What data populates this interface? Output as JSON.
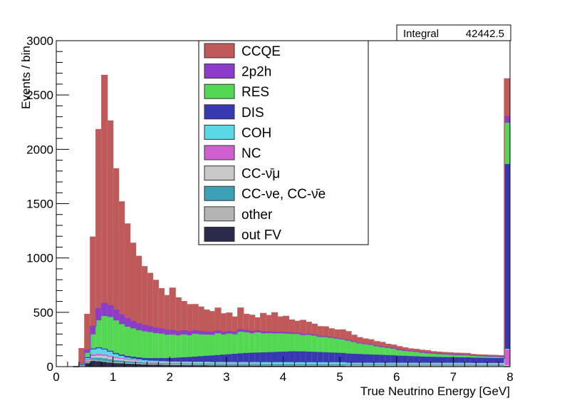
{
  "chart_data": {
    "type": "bar",
    "stacked": true,
    "histogram": true,
    "xlabel": "True Neutrino Energy [GeV]",
    "ylabel": "Events / bin",
    "xlim": [
      0,
      8
    ],
    "ylim": [
      0,
      3000
    ],
    "xticks": [
      "0",
      "1",
      "2",
      "3",
      "4",
      "5",
      "6",
      "7",
      "8"
    ],
    "yticks": [
      "0",
      "500",
      "1000",
      "1500",
      "2000",
      "2500",
      "3000"
    ],
    "grid": false,
    "legend_position": "top-center",
    "stats_box": {
      "label": "Integral",
      "value": "42442.5"
    },
    "bin_width": 0.1,
    "bin_low_edges": [
      0.3,
      0.4,
      0.5,
      0.6,
      0.7,
      0.8,
      0.9,
      1.0,
      1.1,
      1.2,
      1.3,
      1.4,
      1.5,
      1.6,
      1.7,
      1.8,
      1.9,
      2.0,
      2.1,
      2.2,
      2.3,
      2.4,
      2.5,
      2.6,
      2.7,
      2.8,
      2.9,
      3.0,
      3.1,
      3.2,
      3.3,
      3.4,
      3.5,
      3.6,
      3.7,
      3.8,
      3.9,
      4.0,
      4.1,
      4.2,
      4.3,
      4.4,
      4.5,
      4.6,
      4.7,
      4.8,
      4.9,
      5.0,
      5.1,
      5.2,
      5.3,
      5.4,
      5.5,
      5.6,
      5.7,
      5.8,
      5.9,
      6.0,
      6.1,
      6.2,
      6.3,
      6.4,
      6.5,
      6.6,
      6.7,
      6.8,
      6.9,
      7.0,
      7.1,
      7.2,
      7.3,
      7.4,
      7.5,
      7.6,
      7.7,
      7.8,
      7.9
    ],
    "series": [
      {
        "name": "out FV",
        "color": "#2a2a4a",
        "values": [
          0,
          5,
          30,
          50,
          45,
          40,
          35,
          30,
          28,
          26,
          24,
          22,
          20,
          18,
          17,
          16,
          15,
          14,
          14,
          13,
          13,
          12,
          12,
          12,
          11,
          11,
          11,
          10,
          10,
          10,
          10,
          10,
          10,
          9,
          9,
          9,
          9,
          9,
          9,
          8,
          8,
          8,
          8,
          8,
          8,
          8,
          8,
          8,
          7,
          7,
          7,
          7,
          7,
          7,
          7,
          7,
          7,
          6,
          6,
          6,
          6,
          6,
          6,
          6,
          6,
          6,
          6,
          6,
          6,
          6,
          5,
          5,
          5,
          5,
          5,
          5,
          0
        ]
      },
      {
        "name": "other",
        "color": "#b4b4b4",
        "values": [
          0,
          2,
          5,
          8,
          8,
          8,
          7,
          6,
          6,
          5,
          5,
          5,
          4,
          4,
          4,
          4,
          4,
          3,
          3,
          3,
          3,
          3,
          3,
          3,
          3,
          3,
          3,
          3,
          3,
          3,
          3,
          3,
          3,
          3,
          3,
          3,
          3,
          3,
          3,
          3,
          3,
          3,
          3,
          3,
          3,
          3,
          3,
          3,
          2,
          2,
          2,
          2,
          2,
          2,
          2,
          2,
          2,
          2,
          2,
          2,
          2,
          2,
          2,
          2,
          2,
          2,
          2,
          2,
          2,
          2,
          2,
          2,
          2,
          2,
          2,
          2,
          0
        ]
      },
      {
        "name": "CC-νe, CC-ν̄e",
        "color": "#3aa0b4",
        "values": [
          0,
          3,
          10,
          20,
          25,
          25,
          22,
          20,
          18,
          16,
          14,
          13,
          12,
          11,
          11,
          10,
          10,
          10,
          10,
          10,
          10,
          10,
          10,
          10,
          10,
          10,
          10,
          10,
          10,
          10,
          10,
          10,
          10,
          10,
          10,
          10,
          10,
          10,
          10,
          10,
          10,
          10,
          10,
          10,
          10,
          10,
          10,
          10,
          9,
          9,
          9,
          9,
          9,
          9,
          9,
          9,
          9,
          9,
          9,
          9,
          9,
          9,
          9,
          9,
          9,
          9,
          9,
          9,
          9,
          9,
          9,
          9,
          9,
          9,
          9,
          9,
          5
        ]
      },
      {
        "name": "CC-ν̄μ",
        "color": "#c8c8c8",
        "values": [
          0,
          2,
          8,
          15,
          20,
          22,
          20,
          18,
          16,
          15,
          14,
          13,
          12,
          12,
          11,
          11,
          10,
          10,
          10,
          10,
          10,
          10,
          10,
          10,
          10,
          10,
          10,
          10,
          10,
          10,
          10,
          10,
          10,
          10,
          10,
          10,
          10,
          10,
          10,
          10,
          10,
          10,
          10,
          10,
          10,
          10,
          10,
          10,
          9,
          9,
          9,
          9,
          9,
          9,
          9,
          9,
          9,
          9,
          9,
          9,
          9,
          9,
          9,
          9,
          9,
          9,
          9,
          9,
          9,
          9,
          9,
          9,
          9,
          9,
          9,
          9,
          5
        ]
      },
      {
        "name": "NC",
        "color": "#d060d0",
        "values": [
          0,
          3,
          10,
          15,
          15,
          12,
          10,
          8,
          7,
          6,
          6,
          5,
          5,
          5,
          5,
          5,
          5,
          5,
          5,
          5,
          5,
          5,
          5,
          5,
          5,
          5,
          5,
          5,
          5,
          5,
          5,
          5,
          5,
          5,
          5,
          5,
          5,
          5,
          5,
          5,
          5,
          5,
          5,
          5,
          5,
          5,
          5,
          5,
          5,
          5,
          5,
          5,
          5,
          5,
          5,
          5,
          5,
          5,
          5,
          5,
          5,
          5,
          5,
          5,
          5,
          5,
          5,
          5,
          5,
          5,
          5,
          5,
          5,
          5,
          5,
          5,
          150
        ]
      },
      {
        "name": "COH",
        "color": "#5ad8e8",
        "values": [
          0,
          2,
          20,
          55,
          60,
          50,
          40,
          30,
          20,
          12,
          8,
          5,
          3,
          2,
          2,
          1,
          1,
          1,
          1,
          1,
          0,
          0,
          0,
          0,
          0,
          0,
          0,
          0,
          0,
          0,
          0,
          0,
          0,
          0,
          0,
          0,
          0,
          0,
          0,
          0,
          0,
          0,
          0,
          0,
          0,
          0,
          0,
          0,
          0,
          0,
          0,
          0,
          0,
          0,
          0,
          0,
          0,
          0,
          0,
          0,
          0,
          0,
          0,
          0,
          0,
          0,
          0,
          0,
          0,
          0,
          0,
          0,
          0,
          0,
          0,
          0,
          0
        ]
      },
      {
        "name": "DIS",
        "color": "#3838b0",
        "values": [
          0,
          0,
          0,
          0,
          0,
          5,
          8,
          10,
          12,
          14,
          16,
          18,
          20,
          22,
          25,
          28,
          30,
          33,
          36,
          40,
          44,
          48,
          52,
          56,
          60,
          64,
          68,
          72,
          76,
          80,
          84,
          86,
          88,
          90,
          92,
          94,
          96,
          98,
          100,
          100,
          100,
          98,
          96,
          94,
          92,
          90,
          88,
          86,
          84,
          82,
          80,
          78,
          76,
          74,
          72,
          70,
          68,
          66,
          64,
          62,
          60,
          58,
          56,
          55,
          54,
          53,
          52,
          51,
          50,
          50,
          49,
          48,
          47,
          46,
          45,
          45,
          1700
        ]
      },
      {
        "name": "RES",
        "color": "#54d854",
        "values": [
          0,
          5,
          40,
          130,
          250,
          300,
          310,
          300,
          280,
          270,
          260,
          250,
          245,
          240,
          230,
          225,
          215,
          215,
          205,
          210,
          200,
          210,
          200,
          195,
          190,
          200,
          185,
          190,
          180,
          200,
          190,
          180,
          185,
          175,
          175,
          170,
          170,
          165,
          160,
          160,
          150,
          155,
          150,
          140,
          140,
          135,
          130,
          125,
          120,
          110,
          100,
          95,
          90,
          80,
          75,
          70,
          65,
          55,
          50,
          48,
          45,
          40,
          38,
          35,
          32,
          30,
          28,
          26,
          25,
          24,
          22,
          20,
          20,
          18,
          18,
          15,
          380
        ]
      },
      {
        "name": "2p2h",
        "color": "#8c3cc8",
        "values": [
          0,
          5,
          30,
          80,
          110,
          120,
          110,
          100,
          90,
          80,
          70,
          65,
          60,
          55,
          50,
          48,
          45,
          42,
          40,
          38,
          36,
          34,
          32,
          30,
          28,
          26,
          25,
          24,
          23,
          22,
          21,
          20,
          19,
          18,
          17,
          16,
          15,
          14,
          13,
          12,
          11,
          10,
          10,
          9,
          9,
          8,
          8,
          7,
          7,
          6,
          6,
          5,
          5,
          5,
          4,
          4,
          4,
          3,
          3,
          3,
          3,
          3,
          2,
          2,
          2,
          2,
          2,
          2,
          2,
          2,
          2,
          1,
          1,
          1,
          1,
          1,
          60
        ]
      },
      {
        "name": "CCQE",
        "color": "#c05a5a",
        "values": [
          0,
          140,
          330,
          820,
          1650,
          2100,
          1700,
          1300,
          1040,
          870,
          720,
          620,
          540,
          490,
          440,
          370,
          320,
          390,
          310,
          270,
          250,
          240,
          225,
          200,
          190,
          210,
          170,
          170,
          140,
          200,
          150,
          150,
          120,
          170,
          150,
          180,
          140,
          150,
          120,
          110,
          130,
          110,
          100,
          90,
          90,
          80,
          75,
          85,
          80,
          60,
          50,
          45,
          45,
          40,
          40,
          30,
          30,
          30,
          25,
          20,
          20,
          20,
          20,
          15,
          15,
          15,
          15,
          15,
          15,
          15,
          10,
          10,
          10,
          10,
          10,
          10,
          350
        ]
      }
    ]
  }
}
